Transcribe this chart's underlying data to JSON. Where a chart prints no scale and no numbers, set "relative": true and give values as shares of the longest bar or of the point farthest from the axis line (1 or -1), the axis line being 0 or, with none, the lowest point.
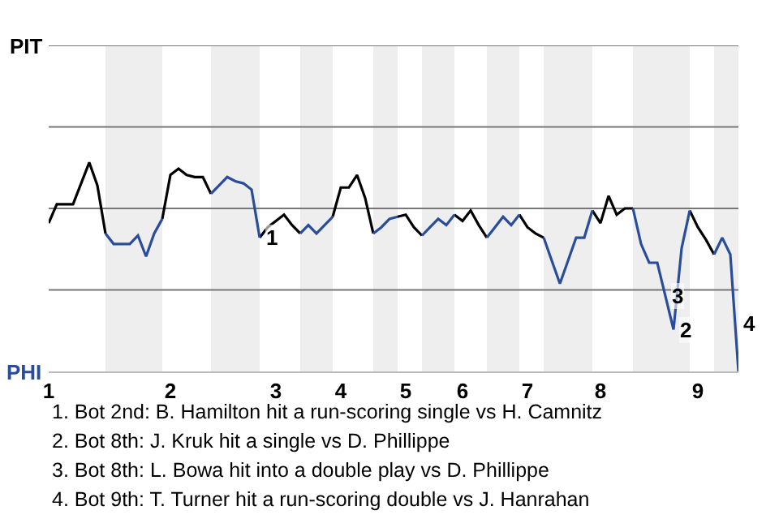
{
  "chart_data": {
    "type": "line",
    "relative": true,
    "categories": [
      "1",
      null,
      null,
      null,
      null,
      null,
      null,
      null,
      null,
      null,
      null,
      null,
      null,
      null,
      null,
      "2",
      null,
      null,
      null,
      null,
      null,
      null,
      null,
      null,
      null,
      null,
      null,
      null,
      "3",
      null,
      null,
      null,
      null,
      null,
      null,
      null,
      "4",
      null,
      null,
      null,
      null,
      null,
      null,
      null,
      "5",
      null,
      null,
      null,
      null,
      null,
      null,
      "6",
      null,
      null,
      null,
      null,
      null,
      null,
      null,
      "7",
      null,
      null,
      null,
      null,
      null,
      null,
      null,
      null,
      "8",
      null,
      null,
      null,
      null,
      null,
      null,
      null,
      null,
      null,
      null,
      null,
      "9",
      null,
      null,
      null,
      null,
      null
    ],
    "ref_lines": [
      {
        "axis": "y",
        "value": 0.39,
        "color": "#777777"
      },
      {
        "axis": "y",
        "value": 0.78,
        "color": "#777777"
      },
      {
        "axis": "y",
        "value": 1.17,
        "color": "#777777"
      },
      {
        "axis": "y",
        "value": 1.56,
        "color": "#777777"
      }
    ],
    "marker": "none",
    "line_style": "solid",
    "series": [
      {
        "color": "#000000",
        "values": [
          0.71,
          0.8,
          0.8,
          0.8,
          0.9,
          1,
          0.89,
          0.66,
          null,
          null,
          null,
          null,
          null,
          null,
          0.73,
          0.94,
          0.97,
          0.94,
          0.93,
          0.93,
          0.85,
          null,
          null,
          null,
          null,
          null,
          0.64,
          0.69,
          0.72,
          0.75,
          0.7,
          0.66,
          null,
          null,
          null,
          0.74,
          0.88,
          0.88,
          0.94,
          0.83,
          0.66,
          null,
          null,
          0.74,
          0.75,
          0.69,
          0.65,
          null,
          null,
          null,
          0.75,
          0.72,
          0.77,
          0.7,
          0.64,
          null,
          null,
          null,
          0.75,
          0.69,
          0.66,
          0.64,
          null,
          null,
          null,
          null,
          null,
          0.77,
          0.71,
          0.84,
          0.75,
          0.78,
          0.78,
          null,
          null,
          null,
          null,
          null,
          null,
          0.77,
          0.69,
          0.63,
          0.56,
          null,
          null,
          null
        ]
      },
      {
        "color": "#2a4d9b",
        "values": [
          null,
          null,
          null,
          null,
          null,
          null,
          null,
          0.66,
          0.61,
          0.61,
          0.61,
          0.65,
          0.55,
          0.66,
          0.73,
          null,
          null,
          null,
          null,
          null,
          0.85,
          0.89,
          0.93,
          0.91,
          0.9,
          0.87,
          0.64,
          null,
          null,
          null,
          null,
          0.66,
          0.7,
          0.66,
          0.7,
          0.74,
          null,
          null,
          null,
          null,
          0.66,
          0.69,
          0.73,
          0.74,
          null,
          null,
          0.65,
          0.69,
          0.73,
          0.7,
          0.75,
          null,
          null,
          null,
          0.64,
          0.69,
          0.74,
          0.7,
          0.75,
          null,
          null,
          0.64,
          0.53,
          0.42,
          0.53,
          0.64,
          0.64,
          0.77,
          null,
          null,
          null,
          null,
          0.78,
          0.61,
          0.52,
          0.52,
          0.36,
          0.2,
          0.59,
          0.77,
          null,
          null,
          0.56,
          0.64,
          0.56,
          0
        ]
      }
    ],
    "annotations": [
      {
        "text": "1",
        "y": 0.64
      },
      {
        "text": "2",
        "y": 0.2
      },
      {
        "text": "3",
        "y": 0.36
      },
      "4",
      "PIT",
      "PHI",
      "1. Bot 2nd: B. Hamilton hit a run-scoring single vs H. Camnitz",
      "2. Bot 8th: J. Kruk hit a single vs D. Phillippe",
      "3. Bot 8th: L. Bowa hit into a double play vs D. Phillippe",
      "4. Bot 9th: T. Turner hit a run-scoring double vs J. Hanrahan"
    ]
  }
}
